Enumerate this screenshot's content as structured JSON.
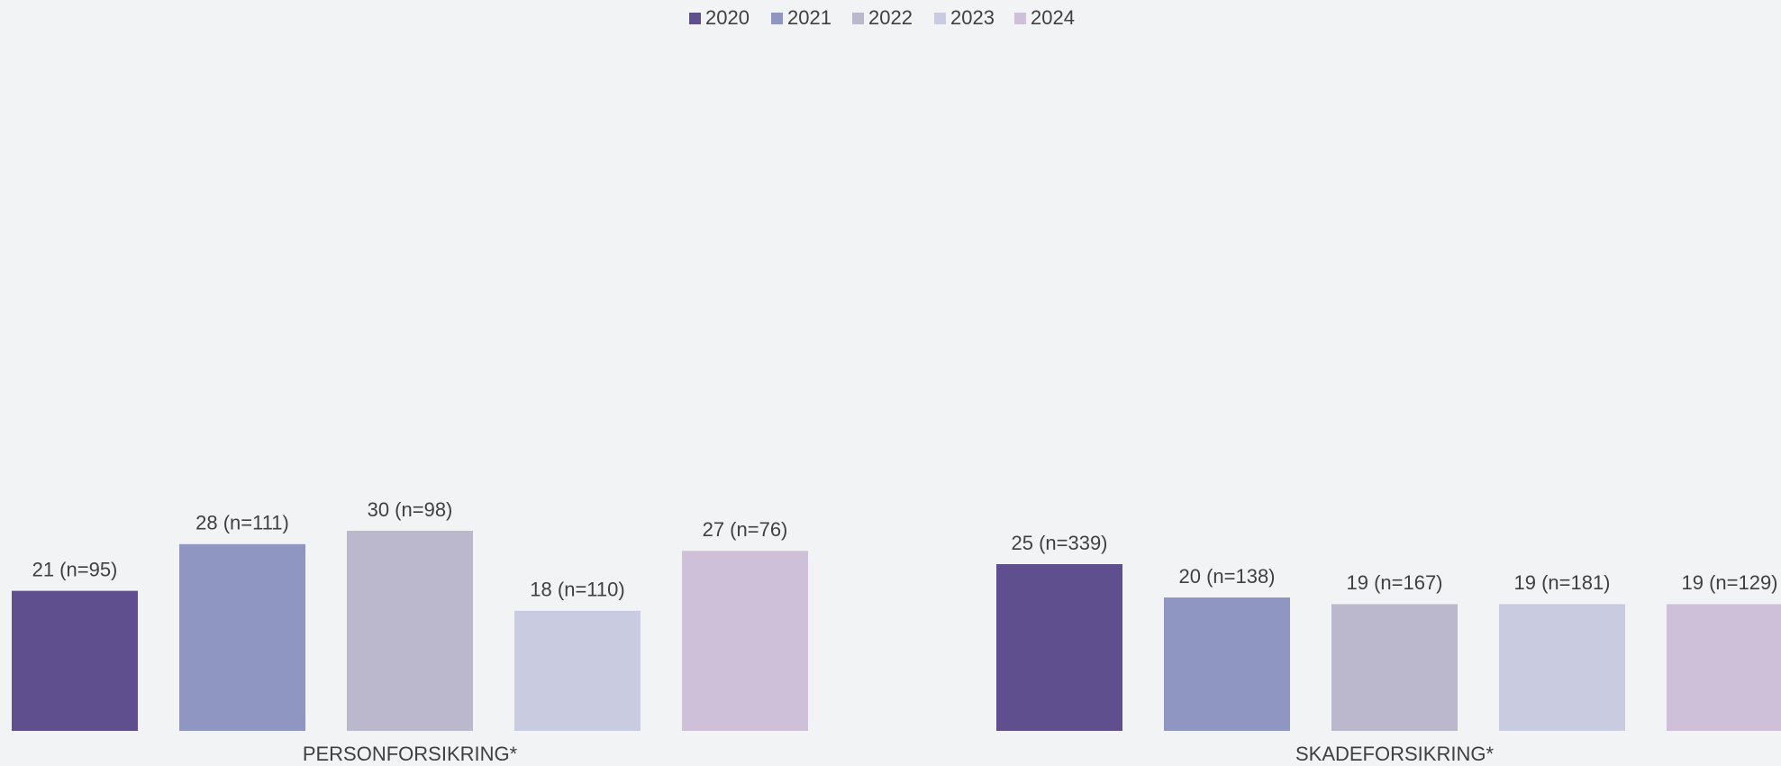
{
  "chart_data": {
    "type": "bar",
    "categories": [
      "PERSONFORSIKRING*",
      "SKADEFORSIKRING*"
    ],
    "series": [
      {
        "name": "2020",
        "color": "#5f4f8f",
        "values": [
          21,
          25
        ],
        "value_labels": [
          "21 (n=95)",
          "25 (n=339)"
        ]
      },
      {
        "name": "2021",
        "color": "#9096c2",
        "values": [
          28,
          20
        ],
        "value_labels": [
          "28 (n=111)",
          "20 (n=138)"
        ]
      },
      {
        "name": "2022",
        "color": "#bbb7cc",
        "values": [
          30,
          19
        ],
        "value_labels": [
          "30 (n=98)",
          "19 (n=167)"
        ]
      },
      {
        "name": "2023",
        "color": "#c9cce0",
        "values": [
          18,
          19
        ],
        "value_labels": [
          "18 (n=110)",
          "19 (n=181)"
        ]
      },
      {
        "name": "2024",
        "color": "#cfc0d9",
        "values": [
          27,
          19
        ],
        "value_labels": [
          "27 (n=76)",
          "19 (n=129)"
        ]
      }
    ],
    "ylim": [
      0,
      100
    ],
    "legend": "top"
  }
}
